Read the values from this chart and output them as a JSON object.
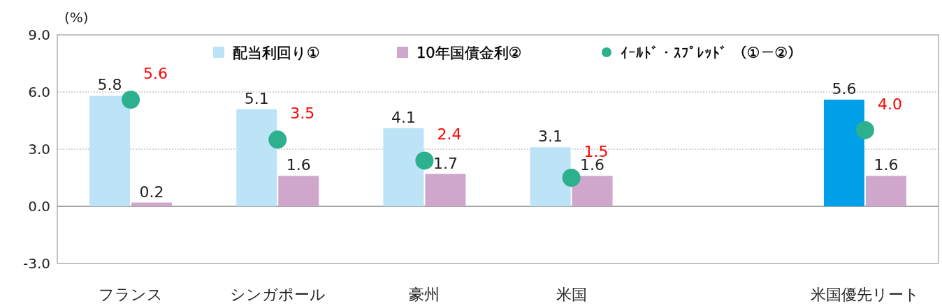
{
  "chart_data": {
    "type": "bar",
    "ylabel": "(%)",
    "categories": [
      "フランス",
      "シンガポール",
      "豪州",
      "米国",
      null,
      "米国優先リート"
    ],
    "series": [
      {
        "name": "配当利回り①",
        "color": "#bde3f7",
        "colors": [
          "#bde3f7",
          "#bde3f7",
          "#bde3f7",
          "#bde3f7",
          null,
          "#00a0e9"
        ],
        "values": [
          5.8,
          5.1,
          4.1,
          3.1,
          null,
          5.6
        ],
        "value_labels": [
          "5.8",
          "5.1",
          "4.1",
          "3.1",
          null,
          "5.6"
        ]
      },
      {
        "name": "10年国債金利②",
        "color": "#cfa7cd",
        "values": [
          0.2,
          1.6,
          1.7,
          1.6,
          null,
          1.6
        ],
        "value_labels": [
          "0.2",
          "1.6",
          "1.7",
          "1.6",
          null,
          "1.6"
        ]
      },
      {
        "name": "ｲｰﾙﾄﾞ・ｽﾌﾟﾚｯﾄﾞ （①－②）",
        "type": "scatter",
        "color": "#2cb08d",
        "values": [
          5.6,
          3.5,
          2.4,
          1.5,
          null,
          4.0
        ],
        "value_labels": [
          "5.6",
          "3.5",
          "2.4",
          "1.5",
          null,
          "4.0"
        ]
      }
    ],
    "ylim": [
      -3,
      9
    ],
    "yticks": [
      {
        "value": -3,
        "label": "-3.0"
      },
      {
        "value": 0,
        "label": "0.0"
      },
      {
        "value": 3,
        "label": "3.0"
      },
      {
        "value": 6,
        "label": "6.0"
      },
      {
        "value": 9,
        "label": "9.0"
      }
    ],
    "grid": "y",
    "legend": "top",
    "marker": "circle"
  }
}
